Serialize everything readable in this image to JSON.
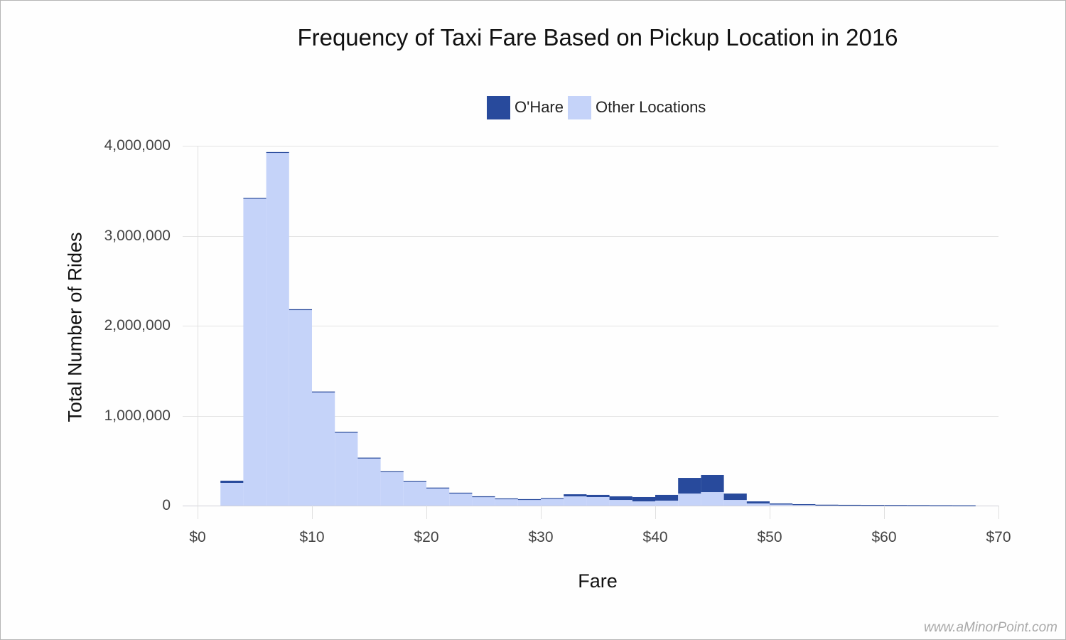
{
  "chart_data": {
    "type": "bar",
    "stacked": true,
    "title": "Frequency of Taxi Fare Based on Pickup Location in 2016",
    "xlabel": "Fare",
    "ylabel": "Total Number of Rides",
    "bin_width": 2,
    "bin_starts": [
      2,
      4,
      6,
      8,
      10,
      12,
      14,
      16,
      18,
      20,
      22,
      24,
      26,
      28,
      30,
      32,
      34,
      36,
      38,
      40,
      42,
      44,
      46,
      48,
      50,
      52,
      54,
      56,
      58,
      60,
      62,
      64,
      66
    ],
    "series": [
      {
        "name": "Other Locations",
        "color": "#c5d3f9",
        "values": [
          253000,
          3412000,
          3922000,
          2177000,
          1263000,
          815000,
          530000,
          378000,
          270000,
          198000,
          142000,
          102000,
          78000,
          70000,
          76000,
          103000,
          95000,
          63000,
          47000,
          55000,
          134000,
          150000,
          63000,
          24000,
          12000,
          9000,
          6000,
          5000,
          4000,
          3500,
          3000,
          2000,
          1500
        ]
      },
      {
        "name": "O'Hare",
        "color": "#284a9c",
        "values": [
          24000,
          8000,
          8000,
          6000,
          5000,
          4000,
          3000,
          3000,
          2000,
          2000,
          1500,
          1500,
          2000,
          2000,
          8000,
          23000,
          24000,
          40000,
          48000,
          64000,
          174000,
          190000,
          71000,
          23000,
          12000,
          7000,
          4000,
          3500,
          3000,
          2500,
          2000,
          1500,
          1000
        ]
      }
    ],
    "x_ticks": [
      "$0",
      "$10",
      "$20",
      "$30",
      "$40",
      "$50",
      "$60",
      "$70"
    ],
    "x_tick_values": [
      0,
      10,
      20,
      30,
      40,
      50,
      60,
      70
    ],
    "y_ticks": [
      "0",
      "1,000,000",
      "2,000,000",
      "3,000,000",
      "4,000,000"
    ],
    "y_tick_values": [
      0,
      1000000,
      2000000,
      3000000,
      4000000
    ],
    "xlim": [
      0,
      70
    ],
    "ylim": [
      0,
      4000000
    ],
    "grid": true,
    "legend_position": "top"
  },
  "legend": [
    {
      "label": "O'Hare",
      "color": "#284a9c"
    },
    {
      "label": "Other Locations",
      "color": "#c5d3f9"
    }
  ],
  "watermark": "www.aMinorPoint.com"
}
